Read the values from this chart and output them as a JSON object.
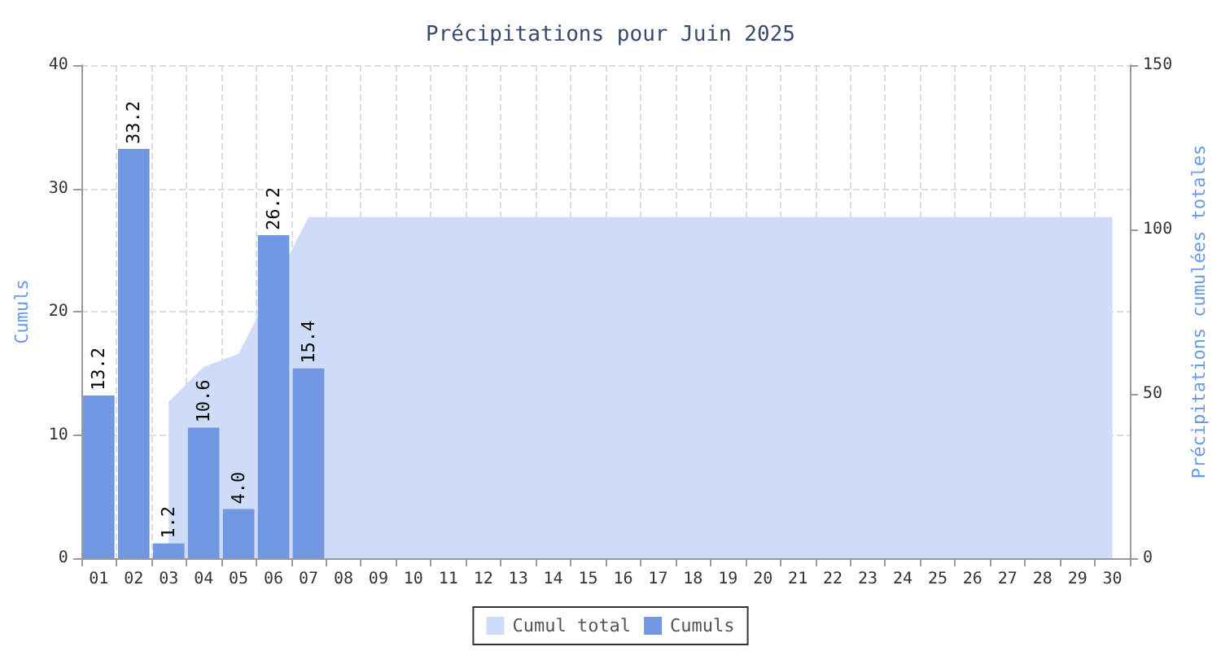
{
  "chart_data": {
    "type": "bar",
    "title": "Précipitations pour Juin 2025",
    "ylabel": "Cumuls",
    "y2label": "Précipitations cumulées totales",
    "categories": [
      "01",
      "02",
      "03",
      "04",
      "05",
      "06",
      "07",
      "08",
      "09",
      "10",
      "11",
      "12",
      "13",
      "14",
      "15",
      "16",
      "17",
      "18",
      "19",
      "20",
      "21",
      "22",
      "23",
      "24",
      "25",
      "26",
      "27",
      "28",
      "29",
      "30"
    ],
    "series": [
      {
        "name": "Cumul total",
        "type": "area",
        "axis": "y2",
        "color": "#cfdcf7",
        "values": [
          null,
          null,
          47.6,
          58.2,
          62.2,
          null,
          103.8,
          103.8,
          103.8,
          103.8,
          103.8,
          103.8,
          103.8,
          103.8,
          103.8,
          103.8,
          103.8,
          103.8,
          103.8,
          103.8,
          103.8,
          103.8,
          103.8,
          103.8,
          103.8,
          103.8,
          103.8,
          103.8,
          103.8,
          103.8
        ]
      },
      {
        "name": "Cumuls",
        "color": "#7097e0",
        "values": [
          13.2,
          33.2,
          1.2,
          10.6,
          4.0,
          26.2,
          15.4,
          null,
          null,
          null,
          null,
          null,
          null,
          null,
          null,
          null,
          null,
          null,
          null,
          null,
          null,
          null,
          null,
          null,
          null,
          null,
          null,
          null,
          null,
          null
        ],
        "value_labels": [
          "13.2",
          "33.2",
          "1.2",
          "10.6",
          "4.0",
          "26.2",
          "15.4",
          null,
          null,
          null,
          null,
          null,
          null,
          null,
          null,
          null,
          null,
          null,
          null,
          null,
          null,
          null,
          null,
          null,
          null,
          null,
          null,
          null,
          null,
          null
        ]
      }
    ],
    "ylim": [
      0,
      40
    ],
    "yticks": [
      0,
      10,
      20,
      30,
      40
    ],
    "y2lim": [
      0,
      150
    ],
    "y2ticks": [
      0,
      50,
      100,
      150
    ],
    "grid": true,
    "legend": "bottom"
  }
}
